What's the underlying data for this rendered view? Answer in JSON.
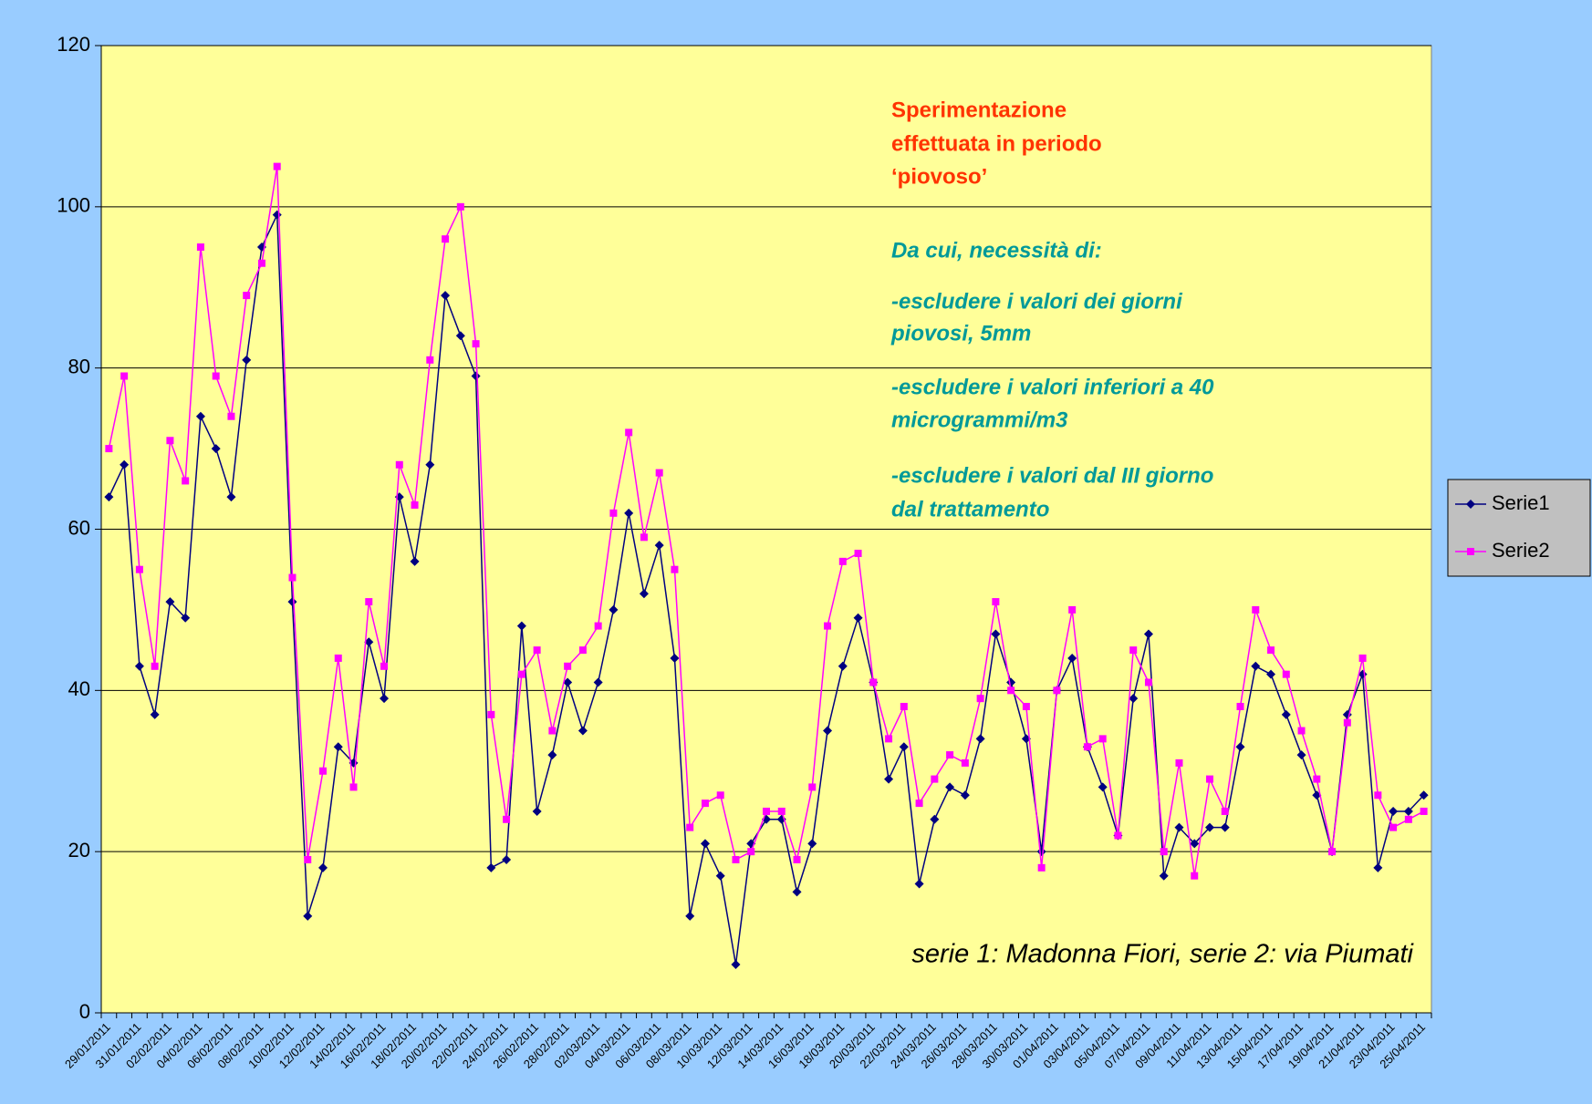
{
  "chart_data": {
    "type": "line",
    "categories": [
      "29/01/2011",
      null,
      "31/01/2011",
      null,
      "02/02/2011",
      null,
      "04/02/2011",
      null,
      "06/02/2011",
      null,
      "08/02/2011",
      null,
      "10/02/2011",
      null,
      "12/02/2011",
      null,
      "14/02/2011",
      null,
      "16/02/2011",
      null,
      "18/02/2011",
      null,
      "20/02/2011",
      null,
      "22/02/2011",
      null,
      "24/02/2011",
      null,
      "26/02/2011",
      null,
      "28/02/2011",
      null,
      "02/03/2011",
      null,
      "04/03/2011",
      null,
      "06/03/2011",
      null,
      "08/03/2011",
      null,
      "10/03/2011",
      null,
      "12/03/2011",
      null,
      "14/03/2011",
      null,
      "16/03/2011",
      null,
      "18/03/2011",
      null,
      "20/03/2011",
      null,
      "22/03/2011",
      null,
      "24/03/2011",
      null,
      "26/03/2011",
      null,
      "28/03/2011",
      null,
      "30/03/2011",
      null,
      "01/04/2011",
      null,
      "03/04/2011",
      null,
      "05/04/2011",
      null,
      "07/04/2011",
      null,
      "09/04/2011",
      null,
      "11/04/2011",
      null,
      "13/04/2011",
      null,
      "15/04/2011",
      null,
      "17/04/2011",
      null,
      "19/04/2011",
      null,
      "21/04/2011",
      null,
      "23/04/2011",
      null,
      "25/04/2011"
    ],
    "series": [
      {
        "name": "Serie1",
        "color": "#000080",
        "marker": "diamond",
        "values": [
          64,
          68,
          43,
          37,
          51,
          49,
          74,
          70,
          64,
          81,
          95,
          99,
          51,
          12,
          18,
          33,
          31,
          46,
          39,
          64,
          56,
          68,
          89,
          84,
          79,
          18,
          19,
          48,
          25,
          32,
          41,
          35,
          41,
          50,
          62,
          52,
          58,
          44,
          12,
          21,
          17,
          6,
          21,
          24,
          24,
          15,
          21,
          35,
          43,
          49,
          41,
          29,
          33,
          16,
          24,
          28,
          27,
          34,
          47,
          41,
          34,
          20,
          40,
          44,
          33,
          28,
          22,
          39,
          47,
          17,
          23,
          21,
          23,
          23,
          33,
          43,
          42,
          37,
          32,
          27,
          20,
          37,
          42,
          18,
          25,
          25,
          27
        ]
      },
      {
        "name": "Serie2",
        "color": "#ff00ff",
        "marker": "square",
        "values": [
          70,
          79,
          55,
          43,
          71,
          66,
          95,
          79,
          74,
          89,
          93,
          105,
          54,
          19,
          30,
          44,
          28,
          51,
          43,
          68,
          63,
          81,
          96,
          100,
          83,
          37,
          24,
          42,
          45,
          35,
          43,
          45,
          48,
          62,
          72,
          59,
          67,
          55,
          23,
          26,
          27,
          19,
          20,
          25,
          25,
          19,
          28,
          48,
          56,
          57,
          41,
          34,
          38,
          26,
          29,
          32,
          31,
          39,
          51,
          40,
          38,
          18,
          40,
          50,
          33,
          34,
          22,
          45,
          41,
          20,
          31,
          17,
          29,
          25,
          38,
          50,
          45,
          42,
          35,
          29,
          20,
          36,
          44,
          27,
          23,
          24,
          25
        ]
      }
    ],
    "ylim": [
      0,
      120
    ],
    "yticks": [
      0,
      20,
      40,
      60,
      80,
      100,
      120
    ],
    "grid": true,
    "legend": "right",
    "annotations": {
      "headline": [
        "Sperimentazione",
        "effettuata in periodo",
        "‘piovoso’"
      ],
      "notes": [
        "Da cui, necessità di:",
        "-escludere i valori dei giorni",
        "piovosi, 5mm",
        "-escludere i valori inferiori a 40",
        "microgrammi/m3",
        "-escludere i valori dal III giorno",
        "dal trattamento"
      ],
      "footnote": "serie 1: Madonna Fiori, serie 2: via Piumati"
    }
  }
}
